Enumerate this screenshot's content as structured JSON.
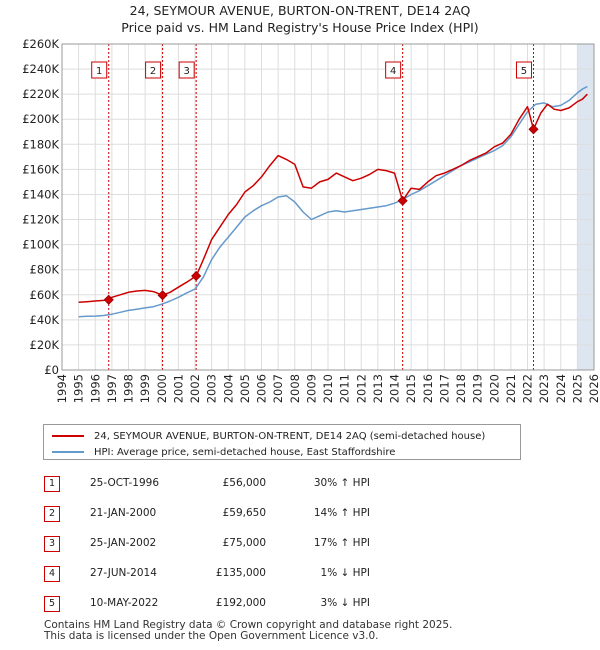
{
  "chart_data": {
    "type": "line",
    "title": "24, SEYMOUR AVENUE, BURTON-ON-TRENT, DE14 2AQ",
    "subtitle": "Price paid vs. HM Land Registry's House Price Index (HPI)",
    "xlim": [
      1994,
      2026
    ],
    "ylim": [
      0,
      260000
    ],
    "x_ticks": [
      "1994",
      "1995",
      "1996",
      "1997",
      "1998",
      "1999",
      "2000",
      "2001",
      "2002",
      "2003",
      "2004",
      "2005",
      "2006",
      "2007",
      "2008",
      "2009",
      "2010",
      "2011",
      "2012",
      "2013",
      "2014",
      "2015",
      "2016",
      "2017",
      "2018",
      "2019",
      "2020",
      "2021",
      "2022",
      "2023",
      "2024",
      "2025",
      "2026"
    ],
    "y_ticks": [
      {
        "value": 0,
        "label": "£0"
      },
      {
        "value": 20000,
        "label": "£20K"
      },
      {
        "value": 40000,
        "label": "£40K"
      },
      {
        "value": 60000,
        "label": "£60K"
      },
      {
        "value": 80000,
        "label": "£80K"
      },
      {
        "value": 100000,
        "label": "£100K"
      },
      {
        "value": 120000,
        "label": "£120K"
      },
      {
        "value": 140000,
        "label": "£140K"
      },
      {
        "value": 160000,
        "label": "£160K"
      },
      {
        "value": 180000,
        "label": "£180K"
      },
      {
        "value": 200000,
        "label": "£200K"
      },
      {
        "value": 220000,
        "label": "£220K"
      },
      {
        "value": 240000,
        "label": "£240K"
      },
      {
        "value": 260000,
        "label": "£260K"
      }
    ],
    "grid": true,
    "series": [
      {
        "name": "24, SEYMOUR AVENUE, BURTON-ON-TRENT, DE14 2AQ (semi-detached house)",
        "color": "#cc0000",
        "x": [
          1995.0,
          1995.5,
          1996.0,
          1996.5,
          1996.81,
          1997.0,
          1997.5,
          1998.0,
          1998.5,
          1999.0,
          1999.5,
          2000.05,
          2000.5,
          2001.0,
          2001.5,
          2002.07,
          2002.5,
          2003.0,
          2003.5,
          2004.0,
          2004.5,
          2005.0,
          2005.5,
          2006.0,
          2006.5,
          2007.0,
          2007.5,
          2008.0,
          2008.5,
          2009.0,
          2009.5,
          2010.0,
          2010.5,
          2011.0,
          2011.5,
          2012.0,
          2012.5,
          2013.0,
          2013.5,
          2014.0,
          2014.49,
          2015.0,
          2015.5,
          2016.0,
          2016.5,
          2017.0,
          2017.5,
          2018.0,
          2018.5,
          2019.0,
          2019.5,
          2020.0,
          2020.5,
          2021.0,
          2021.5,
          2022.0,
          2022.36,
          2022.8,
          2023.2,
          2023.6,
          2024.0,
          2024.5,
          2025.0,
          2025.3,
          2025.6
        ],
        "values": [
          54000,
          54500,
          55000,
          55500,
          56000,
          58000,
          60000,
          62000,
          63000,
          63500,
          62500,
          59650,
          62000,
          66000,
          70000,
          75000,
          88000,
          104000,
          114000,
          124000,
          132000,
          142000,
          147000,
          154000,
          163000,
          171000,
          168000,
          164000,
          146000,
          145000,
          150000,
          152000,
          157000,
          154000,
          151000,
          153000,
          156000,
          160000,
          159000,
          157000,
          135000,
          145000,
          144000,
          150000,
          155000,
          157000,
          160000,
          163000,
          167000,
          170000,
          173000,
          178000,
          181000,
          188000,
          200000,
          210000,
          192000,
          205000,
          212000,
          208000,
          207000,
          209000,
          214000,
          216000,
          220000
        ]
      },
      {
        "name": "HPI: Average price, semi-detached house, East Staffordshire",
        "color": "#6699cc",
        "x": [
          1995.0,
          1995.5,
          1996.0,
          1996.5,
          1997.0,
          1997.5,
          1998.0,
          1998.5,
          1999.0,
          1999.5,
          2000.0,
          2000.5,
          2001.0,
          2001.5,
          2002.0,
          2002.5,
          2003.0,
          2003.5,
          2004.0,
          2004.5,
          2005.0,
          2005.5,
          2006.0,
          2006.5,
          2007.0,
          2007.5,
          2008.0,
          2008.5,
          2009.0,
          2009.5,
          2010.0,
          2010.5,
          2011.0,
          2011.5,
          2012.0,
          2012.5,
          2013.0,
          2013.5,
          2014.0,
          2014.5,
          2015.0,
          2015.5,
          2016.0,
          2016.5,
          2017.0,
          2017.5,
          2018.0,
          2018.5,
          2019.0,
          2019.5,
          2020.0,
          2020.5,
          2021.0,
          2021.5,
          2022.0,
          2022.5,
          2023.0,
          2023.5,
          2024.0,
          2024.5,
          2025.0,
          2025.3,
          2025.6
        ],
        "values": [
          42500,
          42800,
          43000,
          43500,
          44500,
          46000,
          47500,
          48500,
          49500,
          50500,
          52500,
          55000,
          58000,
          61500,
          64500,
          74000,
          88000,
          98000,
          106000,
          114000,
          122000,
          127000,
          131000,
          134000,
          138000,
          139000,
          134000,
          126000,
          120000,
          123000,
          126000,
          127000,
          126000,
          127000,
          128000,
          129000,
          130000,
          131000,
          133000,
          136000,
          140000,
          143000,
          147000,
          151000,
          155000,
          159000,
          163000,
          166000,
          169000,
          172000,
          175000,
          179000,
          186000,
          196000,
          206000,
          212000,
          213000,
          210000,
          211000,
          215000,
          221000,
          224000,
          226000
        ]
      }
    ],
    "sales": [
      {
        "num": "1",
        "x": 1996.81,
        "value": 56000,
        "date": "25-OCT-1996",
        "price": "£56,000",
        "hpi": "30% ↑ HPI"
      },
      {
        "num": "2",
        "x": 2000.05,
        "value": 59650,
        "date": "21-JAN-2000",
        "price": "£59,650",
        "hpi": "14% ↑ HPI"
      },
      {
        "num": "3",
        "x": 2002.07,
        "value": 75000,
        "date": "25-JAN-2002",
        "price": "£75,000",
        "hpi": "17% ↑ HPI"
      },
      {
        "num": "4",
        "x": 2014.49,
        "value": 135000,
        "date": "27-JUN-2014",
        "price": "£135,000",
        "hpi": "1% ↓ HPI"
      },
      {
        "num": "5",
        "x": 2022.36,
        "value": 192000,
        "date": "10-MAY-2022",
        "price": "£192,000",
        "hpi": "3% ↓ HPI"
      }
    ],
    "colors": {
      "property": "#cc0000",
      "hpi": "#6699cc",
      "future_shade": "#dde6f0",
      "grid": "#dddddd"
    }
  },
  "legend": {
    "property_label": "24, SEYMOUR AVENUE, BURTON-ON-TRENT, DE14 2AQ (semi-detached house)",
    "hpi_label": "HPI: Average price, semi-detached house, East Staffordshire"
  },
  "footer": {
    "line1": "Contains HM Land Registry data © Crown copyright and database right 2025.",
    "line2": "This data is licensed under the Open Government Licence v3.0."
  }
}
